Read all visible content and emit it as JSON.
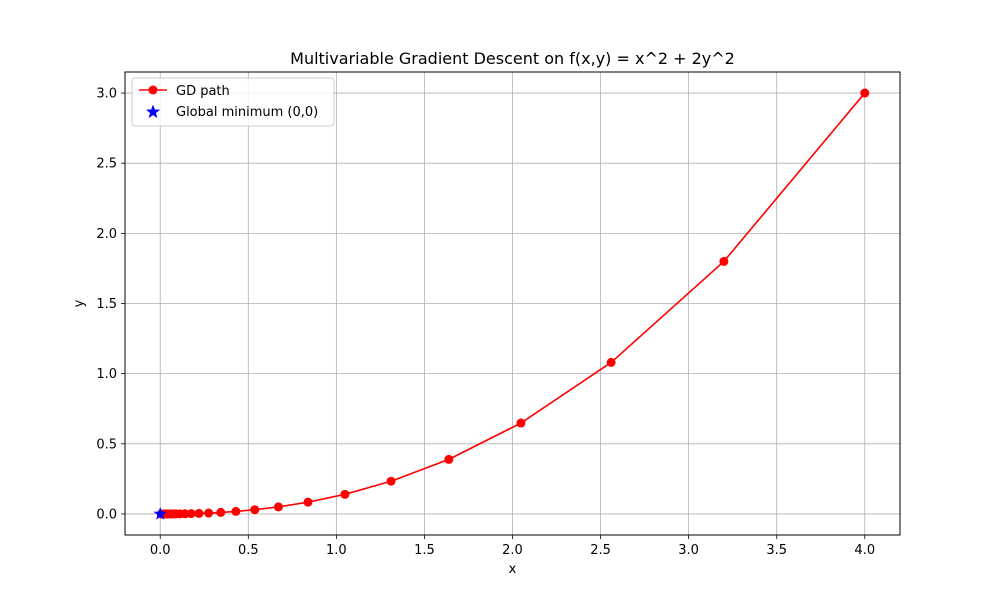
{
  "chart_data": {
    "type": "line",
    "title": "Multivariable Gradient Descent on f(x,y) = x^2 + 2y^2",
    "xlabel": "x",
    "ylabel": "y",
    "xlim": [
      -0.2,
      4.2
    ],
    "ylim": [
      -0.15,
      3.15
    ],
    "xticks": [
      0.0,
      0.5,
      1.0,
      1.5,
      2.0,
      2.5,
      3.0,
      3.5,
      4.0
    ],
    "xtick_labels": [
      "0.0",
      "0.5",
      "1.0",
      "1.5",
      "2.0",
      "2.5",
      "3.0",
      "3.5",
      "4.0"
    ],
    "yticks": [
      0.0,
      0.5,
      1.0,
      1.5,
      2.0,
      2.5,
      3.0
    ],
    "ytick_labels": [
      "0.0",
      "0.5",
      "1.0",
      "1.5",
      "2.0",
      "2.5",
      "3.0"
    ],
    "grid": true,
    "legend_position": "top-left",
    "series": [
      {
        "name": "GD path",
        "color": "#ff0000",
        "marker": "circle",
        "x": [
          4.0,
          3.2,
          2.56,
          2.048,
          1.6384,
          1.31072,
          1.048576,
          0.8388608,
          0.67108864,
          0.536870912,
          0.4294967296,
          0.34359738368,
          0.274877906944,
          0.2199023255552,
          0.17592186044416,
          0.140737488355328,
          0.1125899906842624,
          0.09007199254740993,
          0.07205759403792794,
          0.05764607523034235,
          0.04611686018427388,
          0.0368934881474191,
          0.02951479051793528,
          0.02361183241434823,
          0.01888946593147858,
          0.01511157274518286,
          0.01208925819614629,
          0.00967140655691703,
          0.00773712524553362,
          0.0061897001964269
        ],
        "y": [
          3.0,
          1.8,
          1.08,
          0.648,
          0.3888,
          0.23328,
          0.139968,
          0.0839808,
          0.05038848,
          0.030233088,
          0.0181398528,
          0.01088391168,
          0.006530347008,
          0.0039182082048,
          0.00235092492288,
          0.001410554953728,
          0.0008463329722368,
          0.00050779978334208,
          0.000304679870005248,
          0.0001828079220031488,
          0.00010968475320188928,
          6.581085192113357e-05,
          3.948651115268014e-05,
          2.3691906691608086e-05,
          1.421514401496485e-05,
          8.529086408978911e-06,
          5.117451845387347e-06,
          3.0704711072324076e-06,
          1.8422826643394448e-06,
          1.1053695986036667e-06
        ]
      },
      {
        "name": "Global minimum (0,0)",
        "color": "#0000ff",
        "marker": "star",
        "x": [
          0.0
        ],
        "y": [
          0.0
        ]
      }
    ]
  }
}
